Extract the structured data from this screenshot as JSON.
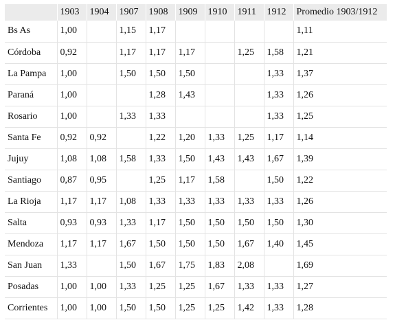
{
  "table": {
    "headers": [
      "",
      "1903",
      "1904",
      "1907",
      "1908",
      "1909",
      "1910",
      "1911",
      "1912",
      "Promedio 1903/1912"
    ],
    "rows": [
      [
        "Bs As",
        "1,00",
        "",
        "1,15",
        "1,17",
        "",
        "",
        "",
        "",
        "1,11"
      ],
      [
        "Córdoba",
        "0,92",
        "",
        "1,17",
        "1,17",
        "1,17",
        "",
        "1,25",
        "1,58",
        "1,21"
      ],
      [
        "La Pampa",
        "1,00",
        "",
        "1,50",
        "1,50",
        "1,50",
        "",
        "",
        "1,33",
        "1,37"
      ],
      [
        "Paraná",
        "1,00",
        "",
        "",
        "1,28",
        "1,43",
        "",
        "",
        "1,33",
        "1,26"
      ],
      [
        "Rosario",
        "1,00",
        "",
        "1,33",
        "1,33",
        "",
        "",
        "",
        "1,33",
        "1,25"
      ],
      [
        "Santa Fe",
        "0,92",
        "0,92",
        "",
        "1,22",
        "1,20",
        "1,33",
        "1,25",
        "1,17",
        "1,14"
      ],
      [
        "Jujuy",
        "1,08",
        "1,08",
        "1,58",
        "1,33",
        "1,50",
        "1,43",
        "1,43",
        "1,67",
        "1,39"
      ],
      [
        "Santiago",
        "0,87",
        "0,95",
        "",
        "1,25",
        "1,17",
        "1,58",
        "",
        "1,50",
        "1,22"
      ],
      [
        "La Rioja",
        "1,17",
        "1,17",
        "1,08",
        "1,33",
        "1,33",
        "1,33",
        "1,33",
        "1,33",
        "1,26"
      ],
      [
        "Salta",
        "0,93",
        "0,93",
        "1,33",
        "1,17",
        "1,50",
        "1,50",
        "1,50",
        "1,50",
        "1,30"
      ],
      [
        "Mendoza",
        "1,17",
        "1,17",
        "1,67",
        "1,50",
        "1,50",
        "1,50",
        "1,67",
        "1,40",
        "1,45"
      ],
      [
        "San Juan",
        "1,33",
        "",
        "1,50",
        "1,67",
        "1,75",
        "1,83",
        "2,08",
        "",
        "1,69"
      ],
      [
        "Posadas",
        "1,00",
        "1,00",
        "1,33",
        "1,25",
        "1,25",
        "1,67",
        "1,33",
        "1,33",
        "1,27"
      ],
      [
        "Corrientes",
        "1,00",
        "1,00",
        "1,50",
        "1,50",
        "1,25",
        "1,25",
        "1,42",
        "1,33",
        "1,28"
      ]
    ]
  }
}
